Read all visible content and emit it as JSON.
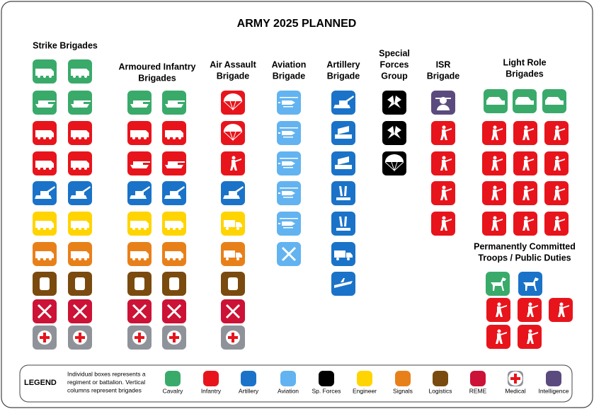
{
  "title": "ARMY 2025 PLANNED",
  "columns": [
    {
      "title_lines": [
        "Strike Brigades"
      ]
    },
    {
      "title_lines": [
        "Armoured Infantry",
        "Brigades"
      ]
    },
    {
      "title_lines": [
        "Air Assault",
        "Brigade"
      ]
    },
    {
      "title_lines": [
        "Aviation",
        "Brigade"
      ]
    },
    {
      "title_lines": [
        "Artillery",
        "Brigade"
      ]
    },
    {
      "title_lines": [
        "Special",
        "Forces",
        "Group"
      ]
    },
    {
      "title_lines": [
        "ISR",
        "Brigade"
      ]
    },
    {
      "title_lines": [
        "Light Role",
        "Brigades"
      ]
    },
    {
      "title_lines": [
        "Permanently Committed",
        "Troops / Public Duties"
      ]
    }
  ],
  "legend": {
    "title": "LEGEND",
    "description_lines": [
      "Individual boxes represents a",
      "regiment or battalion. Vertical",
      "columns represent brigades"
    ],
    "items": [
      {
        "label": "Cavalry",
        "color": "#3aaa6b"
      },
      {
        "label": "Infantry",
        "color": "#e8141c"
      },
      {
        "label": "Artillery",
        "color": "#1a73c8"
      },
      {
        "label": "Aviation",
        "color": "#62b3f0"
      },
      {
        "label": "Sp. Forces",
        "color": "#000000"
      },
      {
        "label": "Engineer",
        "color": "#ffd400"
      },
      {
        "label": "Signals",
        "color": "#e8801a"
      },
      {
        "label": "Logistics",
        "color": "#7a4a0e"
      },
      {
        "label": "REME",
        "color": "#cc1236"
      },
      {
        "label": "Medical",
        "color": "#8f9399"
      },
      {
        "label": "Intelligence",
        "color": "#5b4a7e"
      }
    ]
  }
}
